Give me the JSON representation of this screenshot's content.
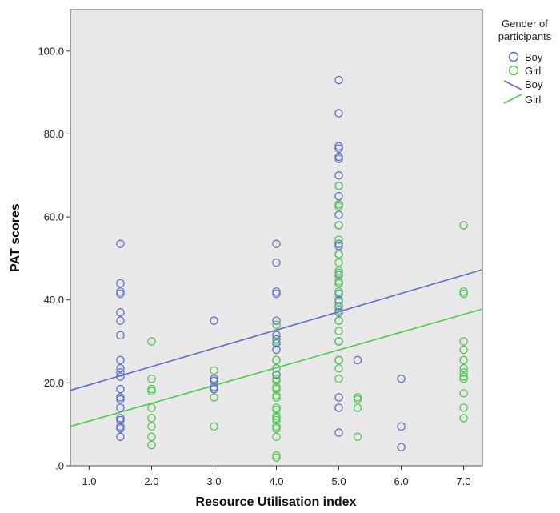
{
  "chart_data": {
    "type": "scatter",
    "xlabel": "Resource Utilisation index",
    "ylabel": "PAT scores",
    "xlim": [
      0.7,
      7.3
    ],
    "ylim": [
      0,
      110
    ],
    "x_ticks": [
      "1.0",
      "2.0",
      "3.0",
      "4.0",
      "5.0",
      "6.0",
      "7.0"
    ],
    "x_tick_values": [
      1,
      2,
      3,
      4,
      5,
      6,
      7
    ],
    "y_ticks": [
      ".0",
      "20.0",
      "40.0",
      "60.0",
      "80.0",
      "100.0"
    ],
    "y_tick_values": [
      0,
      20,
      40,
      60,
      80,
      100
    ],
    "grid": false,
    "background": "#e8e8e8",
    "legend": {
      "title_line1": "Gender of",
      "title_line2": "participants",
      "placement": "right",
      "marker_entries": [
        "Boy",
        "Girl"
      ],
      "line_entries": [
        "Boy",
        "Girl"
      ]
    },
    "series": [
      {
        "name": "Boy",
        "color": "#5b6fc9",
        "fit_line": {
          "x": [
            0.7,
            7.3
          ],
          "y": [
            18.2,
            47.3
          ]
        },
        "points": [
          [
            1.5,
            53.5
          ],
          [
            1.5,
            44
          ],
          [
            1.5,
            42
          ],
          [
            1.5,
            41.5
          ],
          [
            1.5,
            37
          ],
          [
            1.5,
            35
          ],
          [
            1.5,
            31.5
          ],
          [
            1.5,
            25.5
          ],
          [
            1.5,
            23.5
          ],
          [
            1.5,
            22.5
          ],
          [
            1.5,
            21.5
          ],
          [
            1.5,
            18.5
          ],
          [
            1.5,
            16.5
          ],
          [
            1.5,
            16
          ],
          [
            1.5,
            14
          ],
          [
            1.5,
            11.5
          ],
          [
            1.5,
            11
          ],
          [
            1.5,
            9.5
          ],
          [
            1.5,
            9
          ],
          [
            1.5,
            7
          ],
          [
            3,
            35
          ],
          [
            3,
            21
          ],
          [
            3,
            20.5
          ],
          [
            3,
            19
          ],
          [
            3,
            18.5
          ],
          [
            4,
            53.5
          ],
          [
            4,
            49
          ],
          [
            4,
            42
          ],
          [
            4,
            41.5
          ],
          [
            4,
            35
          ],
          [
            4,
            31.5
          ],
          [
            4,
            30.5
          ],
          [
            4,
            29.5
          ],
          [
            4,
            28
          ],
          [
            4,
            25.5
          ],
          [
            4,
            23.5
          ],
          [
            4,
            22
          ],
          [
            5,
            93
          ],
          [
            5,
            85
          ],
          [
            5,
            77
          ],
          [
            5,
            76.5
          ],
          [
            5,
            74.5
          ],
          [
            5,
            74
          ],
          [
            5,
            70
          ],
          [
            5,
            67.5
          ],
          [
            5,
            65
          ],
          [
            5,
            63
          ],
          [
            5,
            60.5
          ],
          [
            5,
            58
          ],
          [
            5,
            53.5
          ],
          [
            5,
            53
          ],
          [
            5,
            51
          ],
          [
            5,
            46
          ],
          [
            5,
            44
          ],
          [
            5,
            41.5
          ],
          [
            5,
            40
          ],
          [
            5,
            38.5
          ],
          [
            5,
            37.5
          ],
          [
            5,
            37
          ],
          [
            5,
            35
          ],
          [
            5,
            30
          ],
          [
            5,
            25.5
          ],
          [
            5,
            16.5
          ],
          [
            5,
            14
          ],
          [
            5,
            8
          ],
          [
            5.3,
            25.5
          ],
          [
            6,
            21
          ],
          [
            6,
            9.5
          ],
          [
            6,
            4.5
          ]
        ]
      },
      {
        "name": "Girl",
        "color": "#4cc94c",
        "fit_line": {
          "x": [
            0.7,
            7.3
          ],
          "y": [
            9.5,
            37.8
          ]
        },
        "points": [
          [
            2,
            30
          ],
          [
            2,
            21
          ],
          [
            2,
            18.5
          ],
          [
            2,
            18
          ],
          [
            2,
            14
          ],
          [
            2,
            11.5
          ],
          [
            2,
            9.5
          ],
          [
            2,
            7
          ],
          [
            2,
            5
          ],
          [
            3,
            23
          ],
          [
            3,
            16.5
          ],
          [
            3,
            9.5
          ],
          [
            4,
            34
          ],
          [
            4,
            30
          ],
          [
            4,
            25.5
          ],
          [
            4,
            23.5
          ],
          [
            4,
            21
          ],
          [
            4,
            20.5
          ],
          [
            4,
            19
          ],
          [
            4,
            18.5
          ],
          [
            4,
            17
          ],
          [
            4,
            16.5
          ],
          [
            4,
            14
          ],
          [
            4,
            13.5
          ],
          [
            4,
            12
          ],
          [
            4,
            11.5
          ],
          [
            4,
            11
          ],
          [
            4,
            9.5
          ],
          [
            4,
            9
          ],
          [
            4,
            7
          ],
          [
            4,
            2.5
          ],
          [
            4,
            2
          ],
          [
            5,
            67.5
          ],
          [
            5,
            63
          ],
          [
            5,
            62.5
          ],
          [
            5,
            58
          ],
          [
            5,
            54.5
          ],
          [
            5,
            51
          ],
          [
            5,
            49
          ],
          [
            5,
            47
          ],
          [
            5,
            46.5
          ],
          [
            5,
            44.5
          ],
          [
            5,
            44
          ],
          [
            5,
            42
          ],
          [
            5,
            39.5
          ],
          [
            5,
            37.5
          ],
          [
            5,
            35
          ],
          [
            5,
            32.5
          ],
          [
            5,
            30
          ],
          [
            5,
            25.5
          ],
          [
            5,
            23.5
          ],
          [
            5,
            21
          ],
          [
            5.3,
            16.5
          ],
          [
            5.3,
            16
          ],
          [
            5.3,
            14
          ],
          [
            5.3,
            7
          ],
          [
            7,
            58
          ],
          [
            7,
            42
          ],
          [
            7,
            41.5
          ],
          [
            7,
            30
          ],
          [
            7,
            28
          ],
          [
            7,
            25.5
          ],
          [
            7,
            23.5
          ],
          [
            7,
            22.5
          ],
          [
            7,
            21.5
          ],
          [
            7,
            21
          ],
          [
            7,
            17.5
          ],
          [
            7,
            14
          ],
          [
            7,
            11.5
          ]
        ]
      }
    ]
  }
}
